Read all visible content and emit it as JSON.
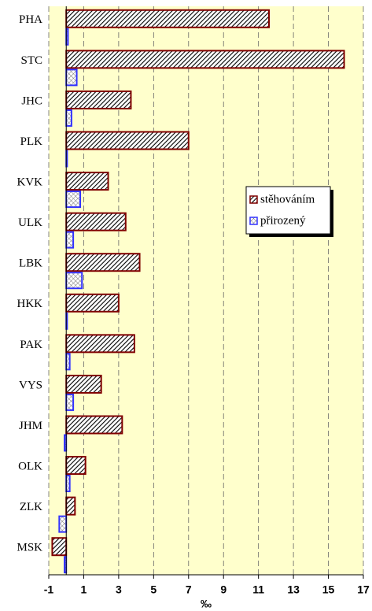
{
  "chart_data": {
    "type": "hbar",
    "categories": [
      "PHA",
      "STC",
      "JHC",
      "PLK",
      "KVK",
      "ULK",
      "LBK",
      "HKK",
      "PAK",
      "VYS",
      "JHM",
      "OLK",
      "ZLK",
      "MSK"
    ],
    "series": [
      {
        "name": "stěhováním",
        "color": "#800000",
        "values": [
          11.6,
          15.9,
          3.7,
          7.0,
          2.4,
          3.4,
          4.2,
          3.0,
          3.9,
          2.0,
          3.2,
          1.1,
          0.5,
          -0.8
        ]
      },
      {
        "name": "přirozený",
        "color": "#3333ff",
        "values": [
          0.1,
          0.6,
          0.3,
          0.05,
          0.8,
          0.4,
          0.9,
          0.05,
          0.2,
          0.4,
          -0.1,
          0.2,
          -0.4,
          -0.1
        ]
      }
    ],
    "xlabel": "‰",
    "xlim": [
      -1,
      17
    ],
    "xticks": [
      -1,
      1,
      3,
      5,
      7,
      9,
      11,
      13,
      15,
      17
    ],
    "grid": true
  }
}
